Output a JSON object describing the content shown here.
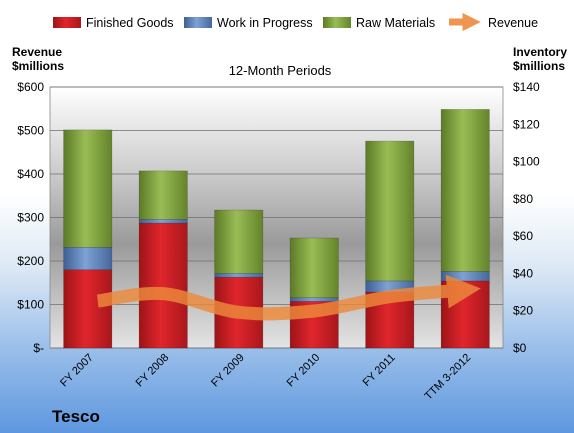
{
  "company": "Tesco",
  "chart_data": {
    "type": "bar",
    "stacked": true,
    "subtitle": "12-Month Periods",
    "left_axis_label": [
      "Revenue",
      "$millions"
    ],
    "right_axis_label": [
      "Inventory",
      "$millions"
    ],
    "categories": [
      "FY 2007",
      "FY 2008",
      "FY 2009",
      "FY 2010",
      "FY 2011",
      "TTM 3-2012"
    ],
    "left_ticks": [
      "$-",
      "$100",
      "$200",
      "$300",
      "$400",
      "$500",
      "$600"
    ],
    "right_ticks": [
      "$0",
      "$20",
      "$40",
      "$60",
      "$80",
      "$100",
      "$120",
      "$140"
    ],
    "ylim_left": [
      0,
      600
    ],
    "ylim_right": [
      0,
      140
    ],
    "grid": true,
    "legend_position": "top",
    "series": [
      {
        "name": "Finished Goods",
        "color": "#e0262c",
        "axis": "right",
        "values": [
          42,
          67,
          38,
          25,
          30,
          36
        ]
      },
      {
        "name": "Work in Progress",
        "color": "#6b91c8",
        "axis": "right",
        "values": [
          12,
          2,
          2,
          2,
          6,
          5
        ]
      },
      {
        "name": "Raw Materials",
        "color": "#8fb54a",
        "axis": "right",
        "values": [
          63,
          26,
          34,
          32,
          75,
          87
        ]
      }
    ],
    "line_series": {
      "name": "Revenue",
      "color": "#ee8a3c",
      "axis": "left",
      "values": [
        108,
        125,
        82,
        85,
        118,
        132
      ]
    }
  }
}
